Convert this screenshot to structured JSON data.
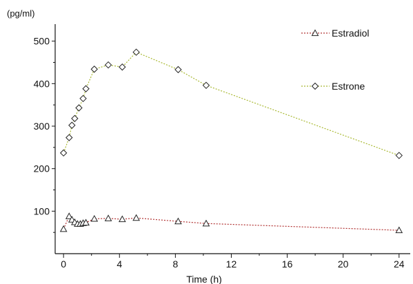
{
  "chart_data": {
    "type": "line",
    "ylabel": "(pg/ml)",
    "xlabel": "Time (h)",
    "xlim": [
      -0.6,
      24.8
    ],
    "ylim": [
      0,
      540
    ],
    "x_ticks": [
      0,
      4,
      8,
      12,
      16,
      20,
      24
    ],
    "y_ticks": [
      100,
      200,
      300,
      400,
      500
    ],
    "grid": false,
    "legend_position": "top-right",
    "series": [
      {
        "name": "Estradiol",
        "color": "#b03030",
        "marker": "triangle",
        "x": [
          0,
          0.4,
          0.6,
          0.8,
          1.0,
          1.2,
          1.4,
          1.6,
          2.2,
          3.2,
          4.2,
          5.2,
          8.2,
          10.2,
          24
        ],
        "y": [
          58,
          88,
          80,
          74,
          70,
          70,
          72,
          73,
          82,
          83,
          81,
          84,
          76,
          71,
          55
        ]
      },
      {
        "name": "Estrone",
        "color": "#a8b830",
        "marker": "diamond",
        "x": [
          0,
          0.4,
          0.6,
          0.8,
          1.1,
          1.4,
          1.6,
          2.2,
          3.2,
          4.2,
          5.2,
          8.2,
          10.2,
          24
        ],
        "y": [
          237,
          273,
          302,
          318,
          343,
          365,
          388,
          434,
          444,
          439,
          474,
          433,
          396,
          231
        ]
      }
    ]
  }
}
